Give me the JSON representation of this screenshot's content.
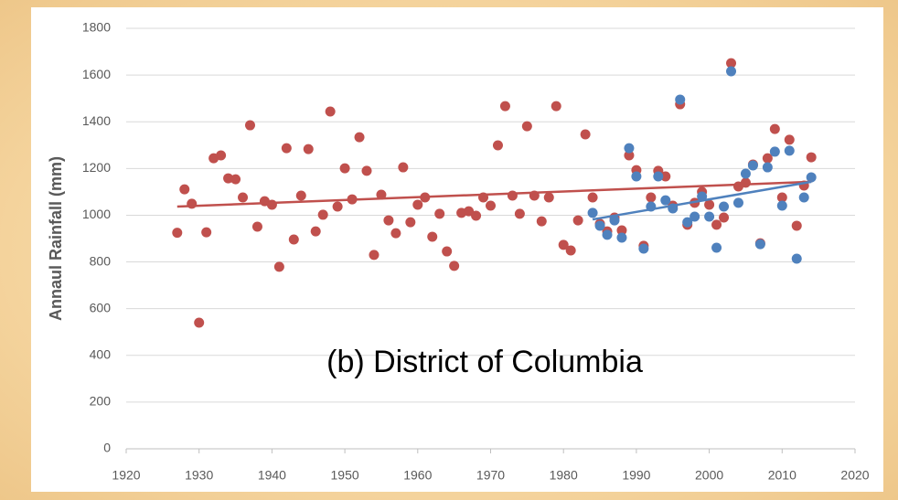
{
  "chart_data": {
    "type": "scatter",
    "y_label": "Annaul Rainfall (mm)",
    "annotation": "(b) District of Columbia",
    "xlim": [
      1920,
      2020
    ],
    "xticks": [
      1920,
      1930,
      1940,
      1950,
      1960,
      1970,
      1980,
      1990,
      2000,
      2010,
      2020
    ],
    "ylim": [
      0,
      1800
    ],
    "yticks": [
      0,
      200,
      400,
      600,
      800,
      1000,
      1200,
      1400,
      1600,
      1800
    ],
    "grid": true,
    "series": [
      {
        "color": "#c0504d",
        "x": [
          1927,
          1928,
          1929,
          1930,
          1931,
          1932,
          1933,
          1934,
          1935,
          1936,
          1937,
          1938,
          1939,
          1940,
          1941,
          1942,
          1943,
          1944,
          1945,
          1946,
          1947,
          1948,
          1949,
          1950,
          1951,
          1952,
          1953,
          1954,
          1955,
          1956,
          1957,
          1958,
          1959,
          1960,
          1961,
          1962,
          1963,
          1964,
          1965,
          1966,
          1967,
          1968,
          1969,
          1970,
          1971,
          1972,
          1973,
          1974,
          1975,
          1976,
          1977,
          1978,
          1979,
          1980,
          1981,
          1982,
          1983,
          1984,
          1985,
          1986,
          1987,
          1988,
          1989,
          1990,
          1991,
          1992,
          1993,
          1994,
          1995,
          1996,
          1997,
          1998,
          1999,
          2000,
          2001,
          2002,
          2003,
          2004,
          2005,
          2006,
          2007,
          2008,
          2009,
          2010,
          2011,
          2012,
          2013,
          2014
        ],
        "values": [
          925,
          1111,
          1049,
          540,
          927,
          1244,
          1256,
          1158,
          1154,
          1076,
          1385,
          951,
          1060,
          1045,
          779,
          1287,
          896,
          1084,
          1283,
          931,
          1002,
          1444,
          1037,
          1201,
          1068,
          1334,
          1190,
          830,
          1088,
          978,
          923,
          1205,
          970,
          1045,
          1076,
          908,
          1006,
          845,
          783,
          1010,
          1017,
          998,
          1076,
          1041,
          1299,
          1467,
          1084,
          1006,
          1381,
          1084,
          974,
          1076,
          1467,
          873,
          849,
          978,
          1346,
          1076,
          963,
          931,
          990,
          935,
          1256,
          1193,
          869,
          1076,
          1190,
          1166,
          1041,
          1475,
          959,
          1053,
          1100,
          1045,
          959,
          990,
          1651,
          1123,
          1139,
          1217,
          880,
          1244,
          1369,
          1076,
          1323,
          955,
          1127,
          1248
        ],
        "trend": {
          "x": [
            1927,
            2014
          ],
          "values": [
            1037,
            1143
          ]
        }
      },
      {
        "color": "#4f81bd",
        "x": [
          1984,
          1985,
          1986,
          1987,
          1988,
          1989,
          1990,
          1991,
          1992,
          1993,
          1994,
          1995,
          1996,
          1997,
          1998,
          1999,
          2000,
          2001,
          2002,
          2003,
          2004,
          2005,
          2006,
          2007,
          2008,
          2009,
          2010,
          2011,
          2012,
          2013,
          2014
        ],
        "values": [
          1010,
          955,
          916,
          978,
          904,
          1287,
          1166,
          857,
          1037,
          1166,
          1064,
          1029,
          1495,
          970,
          994,
          1080,
          994,
          861,
          1037,
          1616,
          1053,
          1178,
          1213,
          876,
          1205,
          1272,
          1041,
          1276,
          814,
          1076,
          1162
        ],
        "trend": {
          "x": [
            1984,
            2014
          ],
          "values": [
            982,
            1143
          ]
        }
      }
    ]
  }
}
